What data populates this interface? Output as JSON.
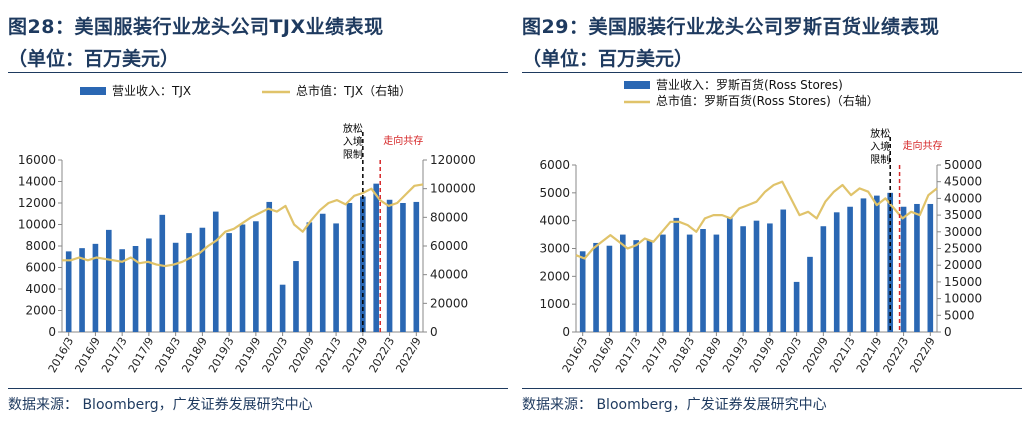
{
  "chart_data": [
    {
      "type": "bar",
      "title": "图28：美国服装行业龙头公司TJX业绩表现",
      "subtitle": "（单位：百万美元）",
      "source": "数据来源：   Bloomberg，广发证券发展研究中心",
      "legend": [
        "营业收入：TJX",
        "总市值：TJX（右轴）"
      ],
      "x_ticks": [
        "2016/3",
        "2016/9",
        "2017/3",
        "2017/9",
        "2018/3",
        "2018/9",
        "2019/3",
        "2019/9",
        "2020/3",
        "2020/9",
        "2021/3",
        "2021/9",
        "2022/3",
        "2022/9"
      ],
      "y_ticks": [
        "0",
        "2000",
        "4000",
        "6000",
        "8000",
        "10000",
        "12000",
        "14000",
        "16000"
      ],
      "y2_ticks": [
        "0",
        "20000",
        "40000",
        "60000",
        "80000",
        "100000",
        "120000"
      ],
      "ylim": [
        0,
        16000
      ],
      "y2lim": [
        0,
        120000
      ],
      "bar_values": [
        7500,
        7800,
        8200,
        9500,
        7700,
        8000,
        8700,
        10900,
        8300,
        9200,
        9700,
        11200,
        9200,
        10000,
        10300,
        12100,
        4400,
        6600,
        10200,
        11000,
        10100,
        12000,
        12600,
        13800,
        12300,
        12000,
        12100
      ],
      "line_values": [
        50000,
        50000,
        52000,
        50000,
        52000,
        51000,
        50000,
        49000,
        52000,
        48000,
        49000,
        47000,
        46000,
        47000,
        49000,
        52000,
        55000,
        60000,
        64000,
        70000,
        72000,
        76000,
        80000,
        83000,
        86000,
        84000,
        88000,
        75000,
        70000,
        78000,
        85000,
        90000,
        92000,
        89000,
        95000,
        97000,
        100000,
        92000,
        88000,
        90000,
        96000,
        102000,
        103000
      ],
      "annotations": [
        {
          "text": "放松入境限制",
          "x_index": 22.5,
          "color": "#000000"
        },
        {
          "text": "走向共存",
          "x_index": 23.8,
          "color": "#d62728"
        }
      ]
    },
    {
      "type": "bar",
      "title": "图29：美国服装行业龙头公司罗斯百货业绩表现",
      "subtitle": "（单位：百万美元）",
      "source": "数据来源：   Bloomberg，广发证券发展研究中心",
      "legend": [
        "营业收入：罗斯百货(Ross Stores)",
        "总市值：罗斯百货(Ross Stores)（右轴）"
      ],
      "x_ticks": [
        "2016/3",
        "2016/9",
        "2017/3",
        "2017/9",
        "2018/3",
        "2018/9",
        "2019/3",
        "2019/9",
        "2020/3",
        "2020/9",
        "2021/3",
        "2021/9",
        "2022/3",
        "2022/9"
      ],
      "y_ticks": [
        "0",
        "1000",
        "2000",
        "3000",
        "4000",
        "5000",
        "6000"
      ],
      "y2_ticks": [
        "0",
        "5000",
        "10000",
        "15000",
        "20000",
        "25000",
        "30000",
        "35000",
        "40000",
        "45000",
        "50000"
      ],
      "ylim": [
        0,
        6000
      ],
      "y2lim": [
        0,
        50000
      ],
      "bar_values": [
        2900,
        3200,
        3100,
        3500,
        3300,
        3300,
        3500,
        4100,
        3500,
        3700,
        3500,
        4100,
        3800,
        4000,
        3900,
        4400,
        1800,
        2700,
        3800,
        4300,
        4500,
        4800,
        4900,
        5000,
        4500,
        4600,
        4600
      ],
      "line_values": [
        23000,
        22000,
        25000,
        27000,
        29000,
        27000,
        25000,
        26000,
        28000,
        27000,
        30000,
        33000,
        33000,
        32000,
        30000,
        34000,
        35000,
        35000,
        34000,
        37000,
        38000,
        39000,
        42000,
        44000,
        45000,
        40000,
        35000,
        36000,
        34000,
        39000,
        42000,
        44000,
        41000,
        43000,
        42000,
        38000,
        40000,
        37000,
        34000,
        36000,
        35000,
        41000,
        43000
      ],
      "annotations": [
        {
          "text": "放松入境限制",
          "x_index": 23.5,
          "color": "#000000"
        },
        {
          "text": "走向共存",
          "x_index": 24.2,
          "color": "#d62728"
        }
      ]
    }
  ]
}
